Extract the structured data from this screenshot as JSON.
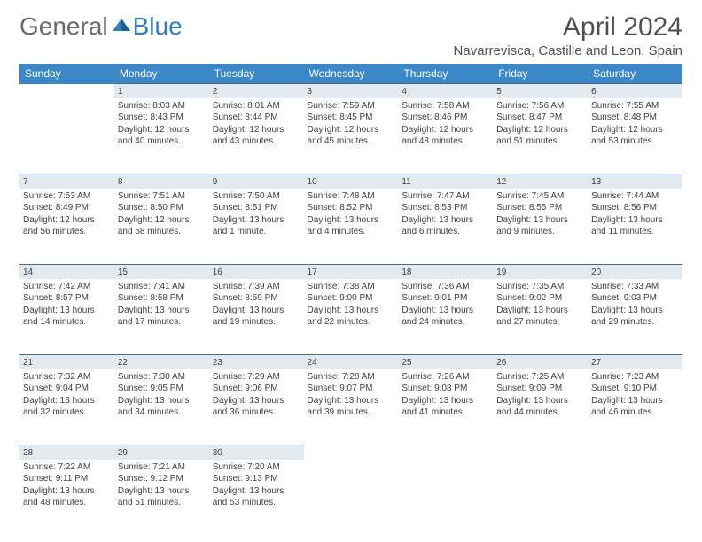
{
  "logo": {
    "part1": "General",
    "part2": "Blue"
  },
  "title": "April 2024",
  "location": "Navarrevisca, Castille and Leon, Spain",
  "colors": {
    "headerBg": "#3b87c8",
    "dayStripBg": "#e2e9ef",
    "dayStripBorder": "#466b8a",
    "pageBg": "#ffffff",
    "text": "#404040",
    "logoGray": "#6a6a6a",
    "logoBlue": "#2f7fc2"
  },
  "weekdays": [
    "Sunday",
    "Monday",
    "Tuesday",
    "Wednesday",
    "Thursday",
    "Friday",
    "Saturday"
  ],
  "weeks": [
    [
      null,
      {
        "n": "1",
        "sr": "Sunrise: 8:03 AM",
        "ss": "Sunset: 8:43 PM",
        "dl": "Daylight: 12 hours and 40 minutes."
      },
      {
        "n": "2",
        "sr": "Sunrise: 8:01 AM",
        "ss": "Sunset: 8:44 PM",
        "dl": "Daylight: 12 hours and 43 minutes."
      },
      {
        "n": "3",
        "sr": "Sunrise: 7:59 AM",
        "ss": "Sunset: 8:45 PM",
        "dl": "Daylight: 12 hours and 45 minutes."
      },
      {
        "n": "4",
        "sr": "Sunrise: 7:58 AM",
        "ss": "Sunset: 8:46 PM",
        "dl": "Daylight: 12 hours and 48 minutes."
      },
      {
        "n": "5",
        "sr": "Sunrise: 7:56 AM",
        "ss": "Sunset: 8:47 PM",
        "dl": "Daylight: 12 hours and 51 minutes."
      },
      {
        "n": "6",
        "sr": "Sunrise: 7:55 AM",
        "ss": "Sunset: 8:48 PM",
        "dl": "Daylight: 12 hours and 53 minutes."
      }
    ],
    [
      {
        "n": "7",
        "sr": "Sunrise: 7:53 AM",
        "ss": "Sunset: 8:49 PM",
        "dl": "Daylight: 12 hours and 56 minutes."
      },
      {
        "n": "8",
        "sr": "Sunrise: 7:51 AM",
        "ss": "Sunset: 8:50 PM",
        "dl": "Daylight: 12 hours and 58 minutes."
      },
      {
        "n": "9",
        "sr": "Sunrise: 7:50 AM",
        "ss": "Sunset: 8:51 PM",
        "dl": "Daylight: 13 hours and 1 minute."
      },
      {
        "n": "10",
        "sr": "Sunrise: 7:48 AM",
        "ss": "Sunset: 8:52 PM",
        "dl": "Daylight: 13 hours and 4 minutes."
      },
      {
        "n": "11",
        "sr": "Sunrise: 7:47 AM",
        "ss": "Sunset: 8:53 PM",
        "dl": "Daylight: 13 hours and 6 minutes."
      },
      {
        "n": "12",
        "sr": "Sunrise: 7:45 AM",
        "ss": "Sunset: 8:55 PM",
        "dl": "Daylight: 13 hours and 9 minutes."
      },
      {
        "n": "13",
        "sr": "Sunrise: 7:44 AM",
        "ss": "Sunset: 8:56 PM",
        "dl": "Daylight: 13 hours and 11 minutes."
      }
    ],
    [
      {
        "n": "14",
        "sr": "Sunrise: 7:42 AM",
        "ss": "Sunset: 8:57 PM",
        "dl": "Daylight: 13 hours and 14 minutes."
      },
      {
        "n": "15",
        "sr": "Sunrise: 7:41 AM",
        "ss": "Sunset: 8:58 PM",
        "dl": "Daylight: 13 hours and 17 minutes."
      },
      {
        "n": "16",
        "sr": "Sunrise: 7:39 AM",
        "ss": "Sunset: 8:59 PM",
        "dl": "Daylight: 13 hours and 19 minutes."
      },
      {
        "n": "17",
        "sr": "Sunrise: 7:38 AM",
        "ss": "Sunset: 9:00 PM",
        "dl": "Daylight: 13 hours and 22 minutes."
      },
      {
        "n": "18",
        "sr": "Sunrise: 7:36 AM",
        "ss": "Sunset: 9:01 PM",
        "dl": "Daylight: 13 hours and 24 minutes."
      },
      {
        "n": "19",
        "sr": "Sunrise: 7:35 AM",
        "ss": "Sunset: 9:02 PM",
        "dl": "Daylight: 13 hours and 27 minutes."
      },
      {
        "n": "20",
        "sr": "Sunrise: 7:33 AM",
        "ss": "Sunset: 9:03 PM",
        "dl": "Daylight: 13 hours and 29 minutes."
      }
    ],
    [
      {
        "n": "21",
        "sr": "Sunrise: 7:32 AM",
        "ss": "Sunset: 9:04 PM",
        "dl": "Daylight: 13 hours and 32 minutes."
      },
      {
        "n": "22",
        "sr": "Sunrise: 7:30 AM",
        "ss": "Sunset: 9:05 PM",
        "dl": "Daylight: 13 hours and 34 minutes."
      },
      {
        "n": "23",
        "sr": "Sunrise: 7:29 AM",
        "ss": "Sunset: 9:06 PM",
        "dl": "Daylight: 13 hours and 36 minutes."
      },
      {
        "n": "24",
        "sr": "Sunrise: 7:28 AM",
        "ss": "Sunset: 9:07 PM",
        "dl": "Daylight: 13 hours and 39 minutes."
      },
      {
        "n": "25",
        "sr": "Sunrise: 7:26 AM",
        "ss": "Sunset: 9:08 PM",
        "dl": "Daylight: 13 hours and 41 minutes."
      },
      {
        "n": "26",
        "sr": "Sunrise: 7:25 AM",
        "ss": "Sunset: 9:09 PM",
        "dl": "Daylight: 13 hours and 44 minutes."
      },
      {
        "n": "27",
        "sr": "Sunrise: 7:23 AM",
        "ss": "Sunset: 9:10 PM",
        "dl": "Daylight: 13 hours and 46 minutes."
      }
    ],
    [
      {
        "n": "28",
        "sr": "Sunrise: 7:22 AM",
        "ss": "Sunset: 9:11 PM",
        "dl": "Daylight: 13 hours and 48 minutes."
      },
      {
        "n": "29",
        "sr": "Sunrise: 7:21 AM",
        "ss": "Sunset: 9:12 PM",
        "dl": "Daylight: 13 hours and 51 minutes."
      },
      {
        "n": "30",
        "sr": "Sunrise: 7:20 AM",
        "ss": "Sunset: 9:13 PM",
        "dl": "Daylight: 13 hours and 53 minutes."
      },
      null,
      null,
      null,
      null
    ]
  ]
}
